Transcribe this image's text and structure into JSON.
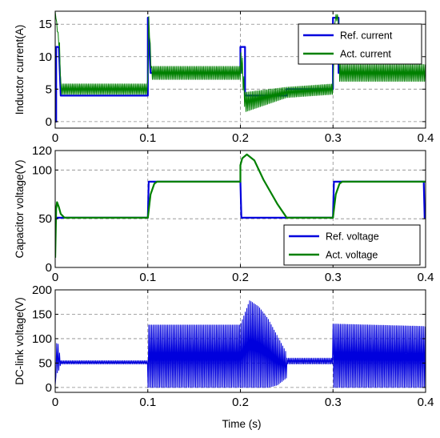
{
  "colors": {
    "reference": "#0000dd",
    "actual": "#008000",
    "grid": "#8a8a8a"
  },
  "xlabel": "Time (s)",
  "chart_data": [
    {
      "type": "line",
      "title": "",
      "xlabel": "",
      "ylabel": "Inductor current(A)",
      "xlim": [
        0,
        0.4
      ],
      "ylim": [
        -1,
        17
      ],
      "xticks": [
        0,
        0.1,
        0.2,
        0.3,
        0.4
      ],
      "yticks": [
        0,
        5,
        10,
        15
      ],
      "grid": true,
      "legend": "top-right",
      "series": [
        {
          "name": "Ref. current",
          "color": "#0000dd",
          "x": [
            0,
            0.001,
            0.001,
            0.004,
            0.006,
            0.1,
            0.1,
            0.103,
            0.2,
            0.2,
            0.205,
            0.205,
            0.25,
            0.25,
            0.3,
            0.3,
            0.306,
            0.306,
            0.4
          ],
          "y": [
            0,
            0,
            11.5,
            11.5,
            4,
            4,
            16,
            7.5,
            7.5,
            11.5,
            11.5,
            4,
            4,
            5,
            5,
            16,
            16,
            7.5,
            7.5
          ]
        },
        {
          "name": "Act. current",
          "color": "#008000",
          "band": true,
          "x": [
            0,
            0.005,
            0.006,
            0.1,
            0.101,
            0.104,
            0.2,
            0.201,
            0.205,
            0.25,
            0.3,
            0.302,
            0.306,
            0.307,
            0.4
          ],
          "center": [
            17,
            11,
            5,
            5,
            16,
            7.5,
            7.5,
            10,
            3,
            4.5,
            5,
            16,
            16,
            7.5,
            7.5
          ],
          "amplitude": [
            0,
            0.8,
            0.8,
            0.8,
            0.4,
            1.0,
            1.0,
            2.0,
            1.5,
            0.8,
            0.8,
            0.5,
            0.5,
            1.3,
            1.3
          ]
        }
      ]
    },
    {
      "type": "line",
      "title": "",
      "xlabel": "",
      "ylabel": "Capacitor voltage(V)",
      "xlim": [
        0,
        0.4
      ],
      "ylim": [
        0,
        120
      ],
      "xticks": [
        0,
        0.1,
        0.2,
        0.3,
        0.4
      ],
      "yticks": [
        0,
        50,
        100,
        120
      ],
      "grid": true,
      "legend": "bottom-right",
      "series": [
        {
          "name": "Ref. voltage",
          "color": "#0000dd",
          "x": [
            0,
            0.001,
            0.1,
            0.101,
            0.2,
            0.201,
            0.3,
            0.301,
            0.398,
            0.399,
            0.4
          ],
          "y": [
            51,
            51,
            51,
            88,
            88,
            51,
            51,
            88,
            88,
            51,
            51
          ]
        },
        {
          "name": "Act. voltage",
          "color": "#008000",
          "x": [
            0,
            0.001,
            0.002,
            0.004,
            0.006,
            0.01,
            0.1,
            0.103,
            0.107,
            0.11,
            0.2,
            0.2,
            0.202,
            0.207,
            0.215,
            0.225,
            0.24,
            0.25,
            0.3,
            0.303,
            0.307,
            0.31,
            0.4
          ],
          "y": [
            10,
            60,
            67,
            62,
            55,
            51,
            51,
            75,
            86,
            88,
            88,
            105,
            112,
            116,
            110,
            90,
            65,
            51,
            51,
            75,
            86,
            88,
            88
          ]
        }
      ]
    },
    {
      "type": "line",
      "title": "",
      "xlabel": "Time (s)",
      "ylabel": "DC-link voltage(V)",
      "xlim": [
        0,
        0.4
      ],
      "ylim": [
        -10,
        200
      ],
      "xticks": [
        0,
        0.1,
        0.2,
        0.3,
        0.4
      ],
      "yticks": [
        0,
        50,
        100,
        150,
        200
      ],
      "grid": true,
      "legend": "none",
      "series": [
        {
          "name": "",
          "color": "#0000dd",
          "band": true,
          "x": [
            0,
            0.001,
            0.003,
            0.006,
            0.1,
            0.1,
            0.1,
            0.2,
            0.2,
            0.21,
            0.22,
            0.23,
            0.24,
            0.25,
            0.25,
            0.3,
            0.3,
            0.4
          ],
          "upper": [
            5,
            90,
            90,
            55,
            55,
            55,
            128,
            128,
            128,
            178,
            165,
            140,
            105,
            70,
            60,
            60,
            130,
            125
          ],
          "lower": [
            0,
            30,
            30,
            48,
            48,
            48,
            0,
            0,
            0,
            0,
            0,
            0,
            5,
            20,
            48,
            48,
            0,
            0
          ]
        }
      ]
    }
  ]
}
